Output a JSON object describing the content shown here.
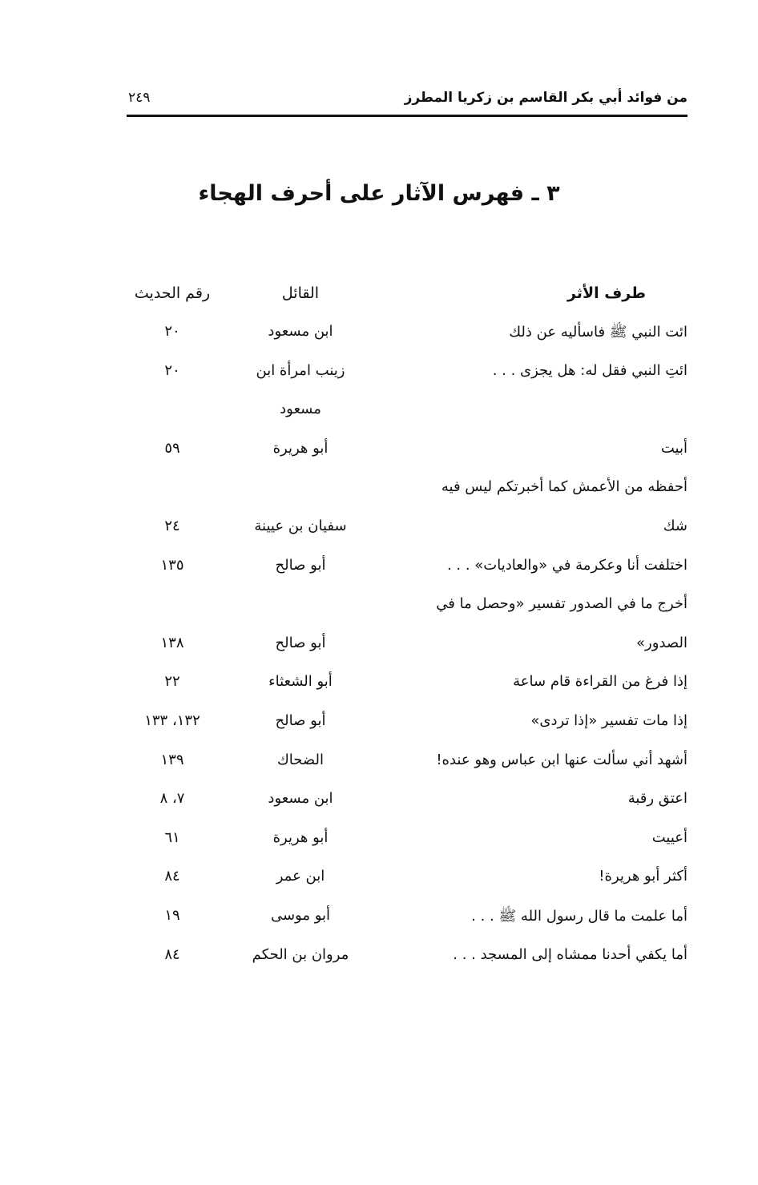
{
  "header": {
    "running_title": "من فوائد أبي بكر القاسم بن زكريا المطرز",
    "page_number": "٢٤٩"
  },
  "title": "٣ ـ فهرس الآثار على أحرف الهجاء",
  "columns": {
    "text": "طرف الأثر",
    "narrator": "القائل",
    "number": "رقم الحديث"
  },
  "rows": [
    {
      "text": "ائت النبي ﷺ فاسأليه عن ذلك",
      "narrator": "ابن مسعود",
      "number": "٢٠"
    },
    {
      "text": "ائتِ النبي فقل له: هل يجزى . . .",
      "narrator": "زينب امرأة ابن",
      "number": "٢٠"
    },
    {
      "text": "",
      "narrator": "مسعود",
      "number": ""
    },
    {
      "text": "أبيت",
      "narrator": "أبو هريرة",
      "number": "٥٩"
    },
    {
      "text": "أحفظه من الأعمش كما أخبرتكم ليس فيه",
      "narrator": "",
      "number": ""
    },
    {
      "text": "شك",
      "narrator": "سفيان بن عيينة",
      "number": "٢٤"
    },
    {
      "text": "اختلفت أنا وعكرمة في «والعاديات» . . .",
      "narrator": "أبو صالح",
      "number": "١٣٥"
    },
    {
      "text": "أخرج ما في الصدور تفسير «وحصل ما في",
      "narrator": "",
      "number": ""
    },
    {
      "text": "الصدور»",
      "narrator": "أبو صالح",
      "number": "١٣٨"
    },
    {
      "text": "إذا فرغ من القراءة قام ساعة",
      "narrator": "أبو الشعثاء",
      "number": "٢٢"
    },
    {
      "text": "إذا مات تفسير «إذا تردى»",
      "narrator": "أبو صالح",
      "number": "١٣٢، ١٣٣"
    },
    {
      "text": "أشهد أني سألت عنها ابن عباس وهو عنده!",
      "narrator": "الضحاك",
      "number": "١٣٩"
    },
    {
      "text": "اعتق رقبة",
      "narrator": "ابن مسعود",
      "number": "٧، ٨"
    },
    {
      "text": "أعييت",
      "narrator": "أبو هريرة",
      "number": "٦١"
    },
    {
      "text": "أكثر أبو هريرة!",
      "narrator": "ابن عمر",
      "number": "٨٤"
    },
    {
      "text": "أما علمت ما قال رسول الله ﷺ . . .",
      "narrator": "أبو موسى",
      "number": "١٩"
    },
    {
      "text": "أما يكفي أحدنا ممشاه إلى المسجد . . .",
      "narrator": "مروان بن الحكم",
      "number": "٨٤"
    }
  ]
}
